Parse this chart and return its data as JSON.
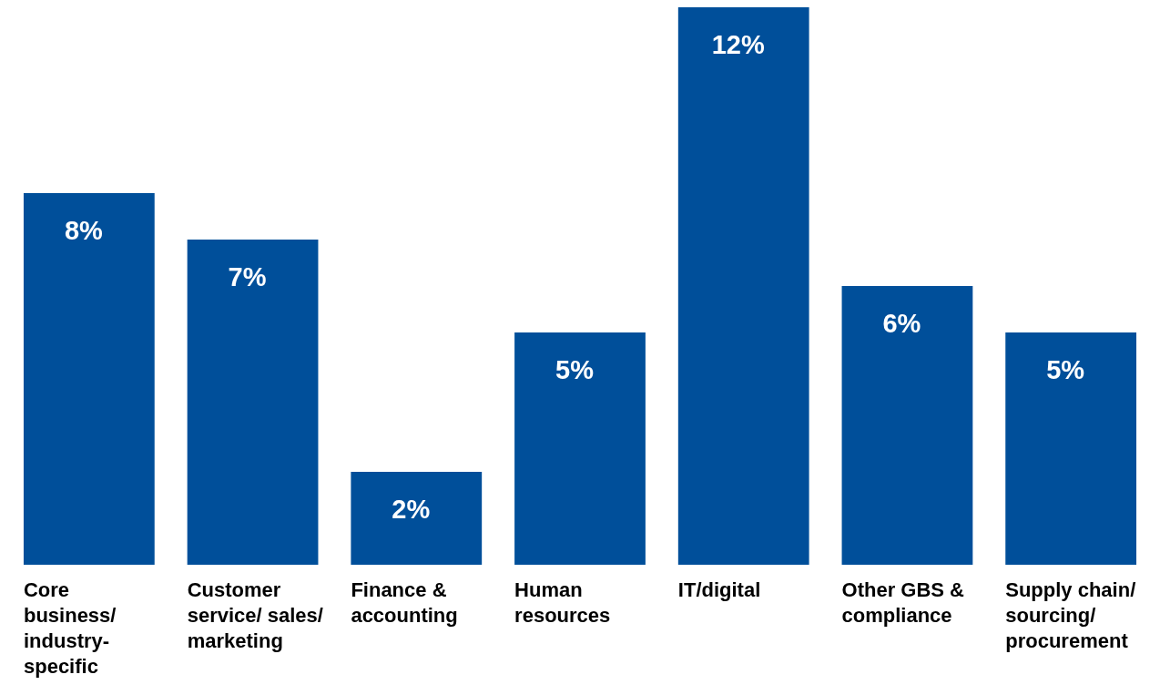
{
  "chart_data": {
    "type": "bar",
    "categories": [
      "Core business/ industry-specific",
      "Customer service/ sales/ marketing",
      "Finance & accounting",
      "Human resources",
      "IT/digital",
      "Other GBS & compliance",
      "Supply chain/ sourcing/ procurement"
    ],
    "values": [
      8,
      7,
      2,
      5,
      12,
      6,
      5
    ],
    "value_labels": [
      "8%",
      "7%",
      "2%",
      "5%",
      "12%",
      "6%",
      "5%"
    ],
    "color": "#004f9a"
  }
}
